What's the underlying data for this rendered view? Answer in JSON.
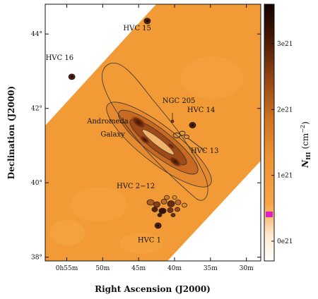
{
  "chart_data": {
    "type": "heatmap",
    "xlabel": "Right Ascension (J2000)",
    "ylabel": "Declination (J2000)",
    "x_ticks": [
      "0h55m",
      "50m",
      "45m",
      "40m",
      "35m",
      "30m"
    ],
    "y_ticks": [
      "38°",
      "40°",
      "42°",
      "44°"
    ],
    "x_tick_minutes": [
      55,
      50,
      45,
      40,
      35,
      30
    ],
    "y_tick_deg": [
      38,
      40,
      42,
      44
    ],
    "xlim_minutes": [
      58,
      28
    ],
    "ylim_deg": [
      37.9,
      44.8
    ],
    "colorbar": {
      "label_main": "N",
      "label_sub": "HI",
      "label_unit": "(cm",
      "label_exp": "−2",
      "label_close": ")",
      "ticks": [
        "0e21",
        "1e21",
        "2e21",
        "3e21"
      ],
      "tick_values": [
        0,
        1,
        2,
        3
      ],
      "range": [
        -0.3,
        3.6
      ],
      "colors": [
        "#ffffff",
        "#fde3c0",
        "#f7a64a",
        "#e98a2a",
        "#b25a1a",
        "#6b2c0c",
        "#1a0804"
      ]
    },
    "annotations": [
      {
        "id": "hvc15",
        "text": "HVC 15",
        "ra_min": 45.2,
        "dec": 44.1
      },
      {
        "id": "hvc16",
        "text": "HVC 16",
        "ra_min": 56.0,
        "dec": 43.3
      },
      {
        "id": "ngc205",
        "text": "NGC 205",
        "ra_min": 39.4,
        "dec": 42.15
      },
      {
        "id": "hvc14",
        "text": "HVC 14",
        "ra_min": 36.3,
        "dec": 41.9
      },
      {
        "id": "andromeda",
        "text": "Andromeda",
        "ra_min": 49.3,
        "dec": 41.6
      },
      {
        "id": "galaxy",
        "text": "Galaxy",
        "ra_min": 48.6,
        "dec": 41.25
      },
      {
        "id": "hvc13",
        "text": "HVC 13",
        "ra_min": 35.8,
        "dec": 40.8
      },
      {
        "id": "hvc2_12",
        "text": "HVC 2−12",
        "ra_min": 45.4,
        "dec": 39.85
      },
      {
        "id": "hvc1",
        "text": "HVC 1",
        "ra_min": 43.5,
        "dec": 38.4
      }
    ],
    "sources": [
      {
        "name": "HVC 15",
        "ra_min": 43.8,
        "dec": 44.35
      },
      {
        "name": "HVC 16",
        "ra_min": 54.3,
        "dec": 42.85
      },
      {
        "name": "HVC 14",
        "ra_min": 37.5,
        "dec": 41.55
      },
      {
        "name": "HVC 1",
        "ra_min": 42.3,
        "dec": 38.85
      }
    ]
  }
}
